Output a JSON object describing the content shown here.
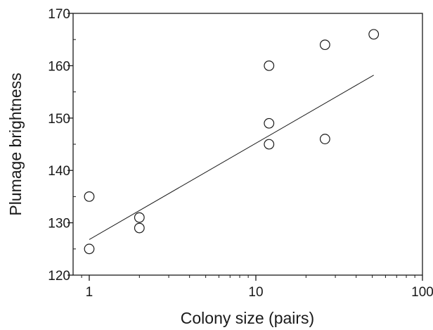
{
  "chart_data": {
    "type": "scatter",
    "title": "",
    "xlabel": "Colony size (pairs)",
    "ylabel": "Plumage brightness",
    "xscale": "log",
    "xlim": [
      0.8,
      100
    ],
    "ylim": [
      120,
      170
    ],
    "x_major_ticks": [
      1,
      10,
      100
    ],
    "x_tick_labels": [
      "1",
      "10",
      "100"
    ],
    "y_major_ticks": [
      120,
      130,
      140,
      150,
      160,
      170
    ],
    "y_tick_labels": [
      "120",
      "130",
      "140",
      "150",
      "160",
      "170"
    ],
    "y_minor_ticks": [
      125,
      135,
      145,
      155,
      165
    ],
    "grid": false,
    "legend": "none",
    "marker": "open-circle",
    "series": [
      {
        "points": [
          {
            "x": 1,
            "y": 135
          },
          {
            "x": 1,
            "y": 125
          },
          {
            "x": 2,
            "y": 131
          },
          {
            "x": 2,
            "y": 129
          },
          {
            "x": 12,
            "y": 160
          },
          {
            "x": 12,
            "y": 149
          },
          {
            "x": 12,
            "y": 145
          },
          {
            "x": 26,
            "y": 164
          },
          {
            "x": 26,
            "y": 146
          },
          {
            "x": 51,
            "y": 166
          }
        ]
      }
    ],
    "trend_line": {
      "x": [
        1,
        51
      ],
      "y": [
        126.8,
        158.2
      ]
    },
    "colors": {
      "axis": "#1a1a1a",
      "marker_stroke": "#1a1a1a",
      "line": "#1a1a1a"
    }
  }
}
